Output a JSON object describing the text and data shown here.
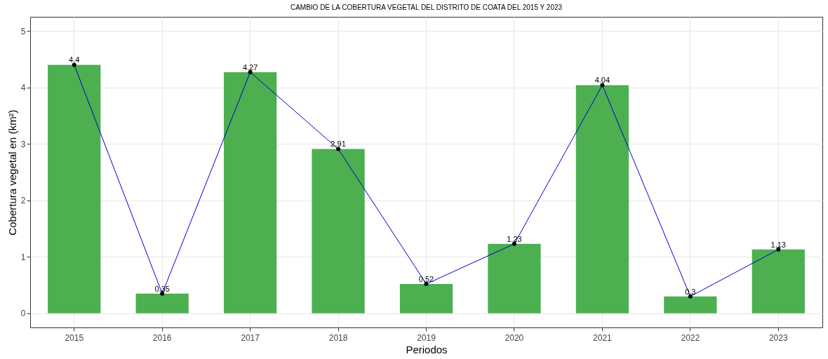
{
  "chart_data": {
    "type": "bar",
    "title": "CAMBIO DE LA COBERTURA VEGETAL DEL DISTRITO DE COATA DEL 2015 Y 2023",
    "xlabel": "Periodos",
    "ylabel": "Cobertura vegetal en (km²)",
    "categories": [
      "2015",
      "2016",
      "2017",
      "2018",
      "2019",
      "2020",
      "2021",
      "2022",
      "2023"
    ],
    "series": [
      {
        "color": "#4caf50",
        "values": [
          4.4,
          0.35,
          4.27,
          2.91,
          0.52,
          1.23,
          4.04,
          0.3,
          1.13
        ]
      },
      {
        "type": "line",
        "color": "#0000cc",
        "values": [
          4.4,
          0.35,
          4.27,
          2.91,
          0.52,
          1.23,
          4.04,
          0.3,
          1.13
        ]
      },
      {
        "type": "scatter",
        "color": "#000000",
        "marker": "circle",
        "values": [
          4.4,
          0.35,
          4.27,
          2.91,
          0.52,
          1.23,
          4.04,
          0.3,
          1.13
        ],
        "value_labels": [
          "4.4",
          "0.35",
          "4.27",
          "2.91",
          "0.52",
          "1.23",
          "4.04",
          "0.3",
          "1.13"
        ]
      }
    ],
    "ylim": [
      -0.25,
      5.25
    ],
    "yticks": [
      0,
      1,
      2,
      3,
      4,
      5
    ],
    "grid": true
  }
}
